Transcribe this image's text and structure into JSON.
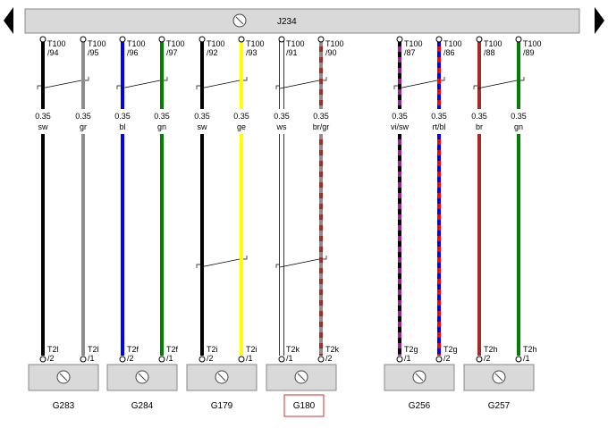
{
  "module": {
    "label": "J234"
  },
  "wires": [
    {
      "top_pin": [
        "T100",
        "/94"
      ],
      "gauge": "0.35",
      "code": "sw",
      "bottom_pin": [
        "T2l",
        "/2"
      ],
      "color": "#000000",
      "stripe": null
    },
    {
      "top_pin": [
        "T100",
        "/95"
      ],
      "gauge": "0.35",
      "code": "gr",
      "bottom_pin": [
        "T2l",
        "/1"
      ],
      "color": "#8c8c8c",
      "stripe": null
    },
    {
      "top_pin": [
        "T100",
        "/96"
      ],
      "gauge": "0.35",
      "code": "bl",
      "bottom_pin": [
        "T2f",
        "/2"
      ],
      "color": "#0000ff",
      "stripe": null
    },
    {
      "top_pin": [
        "T100",
        "/97"
      ],
      "gauge": "0.35",
      "code": "gn",
      "bottom_pin": [
        "T2f",
        "/1"
      ],
      "color": "#008000",
      "stripe": null
    },
    {
      "top_pin": [
        "T100",
        "/92"
      ],
      "gauge": "0.35",
      "code": "sw",
      "bottom_pin": [
        "T2i",
        "/2"
      ],
      "color": "#000000",
      "stripe": null
    },
    {
      "top_pin": [
        "T100",
        "/93"
      ],
      "gauge": "0.35",
      "code": "ge",
      "bottom_pin": [
        "T2i",
        "/1"
      ],
      "color": "#ffff00",
      "stripe": null
    },
    {
      "top_pin": [
        "T100",
        "/91"
      ],
      "gauge": "0.35",
      "code": "ws",
      "bottom_pin": [
        "T2k",
        "/1"
      ],
      "color": "#ffffff",
      "stripe": null
    },
    {
      "top_pin": [
        "T100",
        "/90"
      ],
      "gauge": "0.35",
      "code": "br/gr",
      "bottom_pin": [
        "T2k",
        "/2"
      ],
      "color": "#a52a2a",
      "stripe": "#8c8c8c"
    },
    {
      "top_pin": [
        "T100",
        "/87"
      ],
      "gauge": "0.35",
      "code": "vi/sw",
      "bottom_pin": [
        "T2g",
        "/1"
      ],
      "color": "#a020a0",
      "stripe": "#000000"
    },
    {
      "top_pin": [
        "T100",
        "/86"
      ],
      "gauge": "0.35",
      "code": "rt/bl",
      "bottom_pin": [
        "T2g",
        "/2"
      ],
      "color": "#ff0000",
      "stripe": "#0000ff"
    },
    {
      "top_pin": [
        "T100",
        "/88"
      ],
      "gauge": "0.35",
      "code": "br",
      "bottom_pin": [
        "T2h",
        "/2"
      ],
      "color": "#a52a2a",
      "stripe": null
    },
    {
      "top_pin": [
        "T100",
        "/89"
      ],
      "gauge": "0.35",
      "code": "gn",
      "bottom_pin": [
        "T2h",
        "/1"
      ],
      "color": "#008000",
      "stripe": null
    }
  ],
  "components": [
    {
      "label": "G283"
    },
    {
      "label": "G284"
    },
    {
      "label": "G179"
    },
    {
      "label": "G180"
    },
    {
      "label": "G256"
    },
    {
      "label": "G257"
    }
  ]
}
